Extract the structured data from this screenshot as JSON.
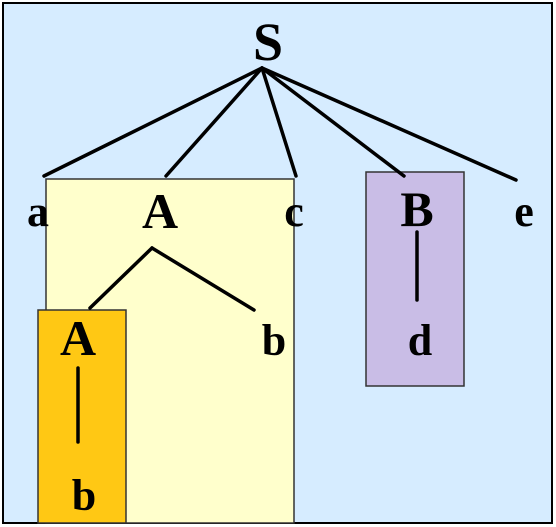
{
  "colors": {
    "canvas_background": "#d6ecff",
    "outer_border": "#000000",
    "box_outer_A": "#ffffcc",
    "box_inner_A": "#ffc814",
    "box_B": "#c9bde6",
    "box_border": "#333333",
    "edge": "#000000",
    "text": "#000000"
  },
  "tree": {
    "root": "S",
    "children_of_root": [
      "a",
      "A",
      "c",
      "B",
      "e"
    ],
    "children_of_A": [
      "A",
      "b"
    ],
    "children_of_inner_A": [
      "b"
    ],
    "children_of_B": [
      "d"
    ]
  },
  "labels": {
    "S": "S",
    "a": "a",
    "A": "A",
    "c": "c",
    "B": "B",
    "e": "e",
    "A2": "A",
    "b1": "b",
    "b2": "b",
    "d": "d"
  }
}
